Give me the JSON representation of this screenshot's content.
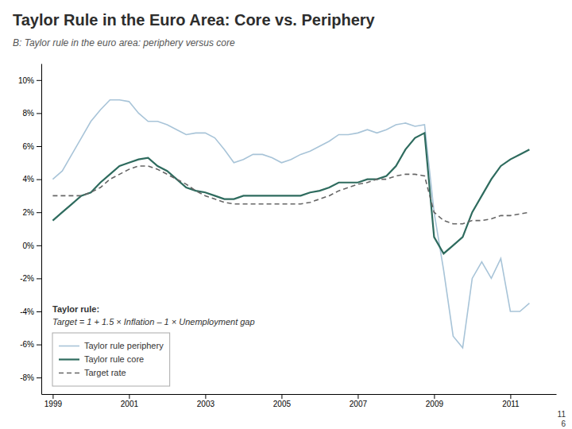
{
  "chart_data": {
    "type": "line",
    "title": "Taylor Rule in the Euro Area: Core vs. Periphery",
    "subtitle": "B: Taylor rule in the euro area: periphery versus core",
    "annotations": [
      "Taylor rule:",
      "Target = 1 + 1.5 × Inflation – 1 × Unemployment gap",
      "11",
      "6"
    ],
    "x": [
      1999.0,
      1999.25,
      1999.5,
      1999.75,
      2000.0,
      2000.25,
      2000.5,
      2000.75,
      2001.0,
      2001.25,
      2001.5,
      2001.75,
      2002.0,
      2002.25,
      2002.5,
      2002.75,
      2003.0,
      2003.25,
      2003.5,
      2003.75,
      2004.0,
      2004.25,
      2004.5,
      2004.75,
      2005.0,
      2005.25,
      2005.5,
      2005.75,
      2006.0,
      2006.25,
      2006.5,
      2006.75,
      2007.0,
      2007.25,
      2007.5,
      2007.75,
      2008.0,
      2008.25,
      2008.5,
      2008.75,
      2009.0,
      2009.25,
      2009.5,
      2009.75,
      2010.0,
      2010.25,
      2010.5,
      2010.75,
      2011.0,
      2011.25,
      2011.5
    ],
    "series": [
      {
        "name": "Taylor rule periphery",
        "color": "#a8c4d8",
        "line_style": "solid",
        "values": [
          0.04,
          0.045,
          0.055,
          0.065,
          0.075,
          0.082,
          0.088,
          0.088,
          0.087,
          0.08,
          0.075,
          0.075,
          0.073,
          0.07,
          0.067,
          0.068,
          0.068,
          0.065,
          0.058,
          0.05,
          0.052,
          0.055,
          0.055,
          0.053,
          0.05,
          0.052,
          0.055,
          0.057,
          0.06,
          0.063,
          0.067,
          0.067,
          0.068,
          0.07,
          0.068,
          0.07,
          0.073,
          0.074,
          0.072,
          0.073,
          0.02,
          -0.015,
          -0.055,
          -0.062,
          -0.02,
          -0.01,
          -0.02,
          -0.008,
          -0.04,
          -0.04,
          -0.035
        ]
      },
      {
        "name": "Taylor rule core",
        "color": "#2e6b5e",
        "line_style": "solid",
        "values": [
          0.015,
          0.02,
          0.025,
          0.03,
          0.032,
          0.038,
          0.043,
          0.048,
          0.05,
          0.052,
          0.053,
          0.048,
          0.045,
          0.04,
          0.035,
          0.033,
          0.032,
          0.03,
          0.028,
          0.028,
          0.03,
          0.03,
          0.03,
          0.03,
          0.03,
          0.03,
          0.03,
          0.032,
          0.033,
          0.035,
          0.038,
          0.038,
          0.038,
          0.04,
          0.04,
          0.042,
          0.048,
          0.058,
          0.065,
          0.068,
          0.005,
          -0.005,
          0.0,
          0.005,
          0.02,
          0.03,
          0.04,
          0.048,
          0.052,
          0.055,
          0.058
        ]
      },
      {
        "name": "Target rate",
        "color": "#666666",
        "line_style": "dashed",
        "values": [
          0.03,
          0.03,
          0.03,
          0.03,
          0.032,
          0.035,
          0.04,
          0.043,
          0.046,
          0.048,
          0.048,
          0.046,
          0.043,
          0.04,
          0.037,
          0.033,
          0.03,
          0.028,
          0.026,
          0.025,
          0.025,
          0.025,
          0.025,
          0.025,
          0.025,
          0.025,
          0.025,
          0.026,
          0.028,
          0.03,
          0.033,
          0.035,
          0.037,
          0.038,
          0.04,
          0.04,
          0.042,
          0.043,
          0.043,
          0.042,
          0.02,
          0.015,
          0.013,
          0.013,
          0.015,
          0.015,
          0.016,
          0.018,
          0.018,
          0.019,
          0.02
        ]
      }
    ],
    "xlim": [
      1998.7,
      2012.2
    ],
    "xticks": [
      1999,
      2001,
      2003,
      2005,
      2007,
      2009,
      2011
    ],
    "ylim": [
      -0.09,
      0.11
    ],
    "yticks": [
      {
        "value": -0.08,
        "label": "-8%"
      },
      {
        "value": -0.06,
        "label": "-6%"
      },
      {
        "value": -0.04,
        "label": "-4%"
      },
      {
        "value": -0.02,
        "label": "-2%"
      },
      {
        "value": 0.0,
        "label": "0%"
      },
      {
        "value": 0.02,
        "label": "2%"
      },
      {
        "value": 0.04,
        "label": "4%"
      },
      {
        "value": 0.06,
        "label": "6%"
      },
      {
        "value": 0.08,
        "label": "8%"
      },
      {
        "value": 0.1,
        "label": "10%"
      }
    ],
    "grid": false,
    "legend": "lower left"
  }
}
